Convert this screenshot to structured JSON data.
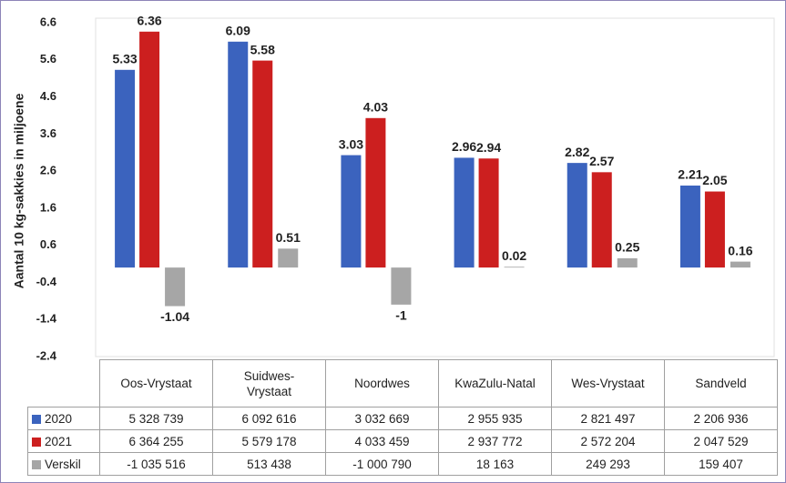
{
  "chart_data": {
    "type": "bar",
    "y_label": "Aantal 10 kg-sakkies in miljoene",
    "categories": [
      "Oos-Vrystaat",
      "Suidwes-\nVrystaat",
      "Noordwes",
      "KwaZulu-Natal",
      "Wes-Vrystaat",
      "Sandveld"
    ],
    "series": [
      {
        "name": "2020",
        "color": "#3b63be",
        "values": [
          5.33,
          6.09,
          3.03,
          2.96,
          2.82,
          2.21
        ],
        "table_labels": [
          "5 328 739",
          "6 092 616",
          "3 032 669",
          "2 955 935",
          "2 821 497",
          "2 206 936"
        ]
      },
      {
        "name": "2021",
        "color": "#cc1f1f",
        "values": [
          6.36,
          5.58,
          4.03,
          2.94,
          2.57,
          2.05
        ],
        "table_labels": [
          "6 364 255",
          "5 579 178",
          "4 033 459",
          "2 937 772",
          "2 572 204",
          "2 047 529"
        ]
      },
      {
        "name": "Verskil",
        "color": "#a6a6a6",
        "values": [
          -1.04,
          0.51,
          -1,
          0.02,
          0.25,
          0.16
        ],
        "table_labels": [
          "-1 035 516",
          "513 438",
          "-1 000 790",
          "18 163",
          "249 293",
          "159 407"
        ]
      }
    ],
    "ylim": [
      -2.4,
      6.6
    ],
    "yticks": [
      -2.4,
      -1.4,
      -0.4,
      0.6,
      1.6,
      2.6,
      3.6,
      4.6,
      5.6,
      6.6
    ],
    "grid": false
  }
}
